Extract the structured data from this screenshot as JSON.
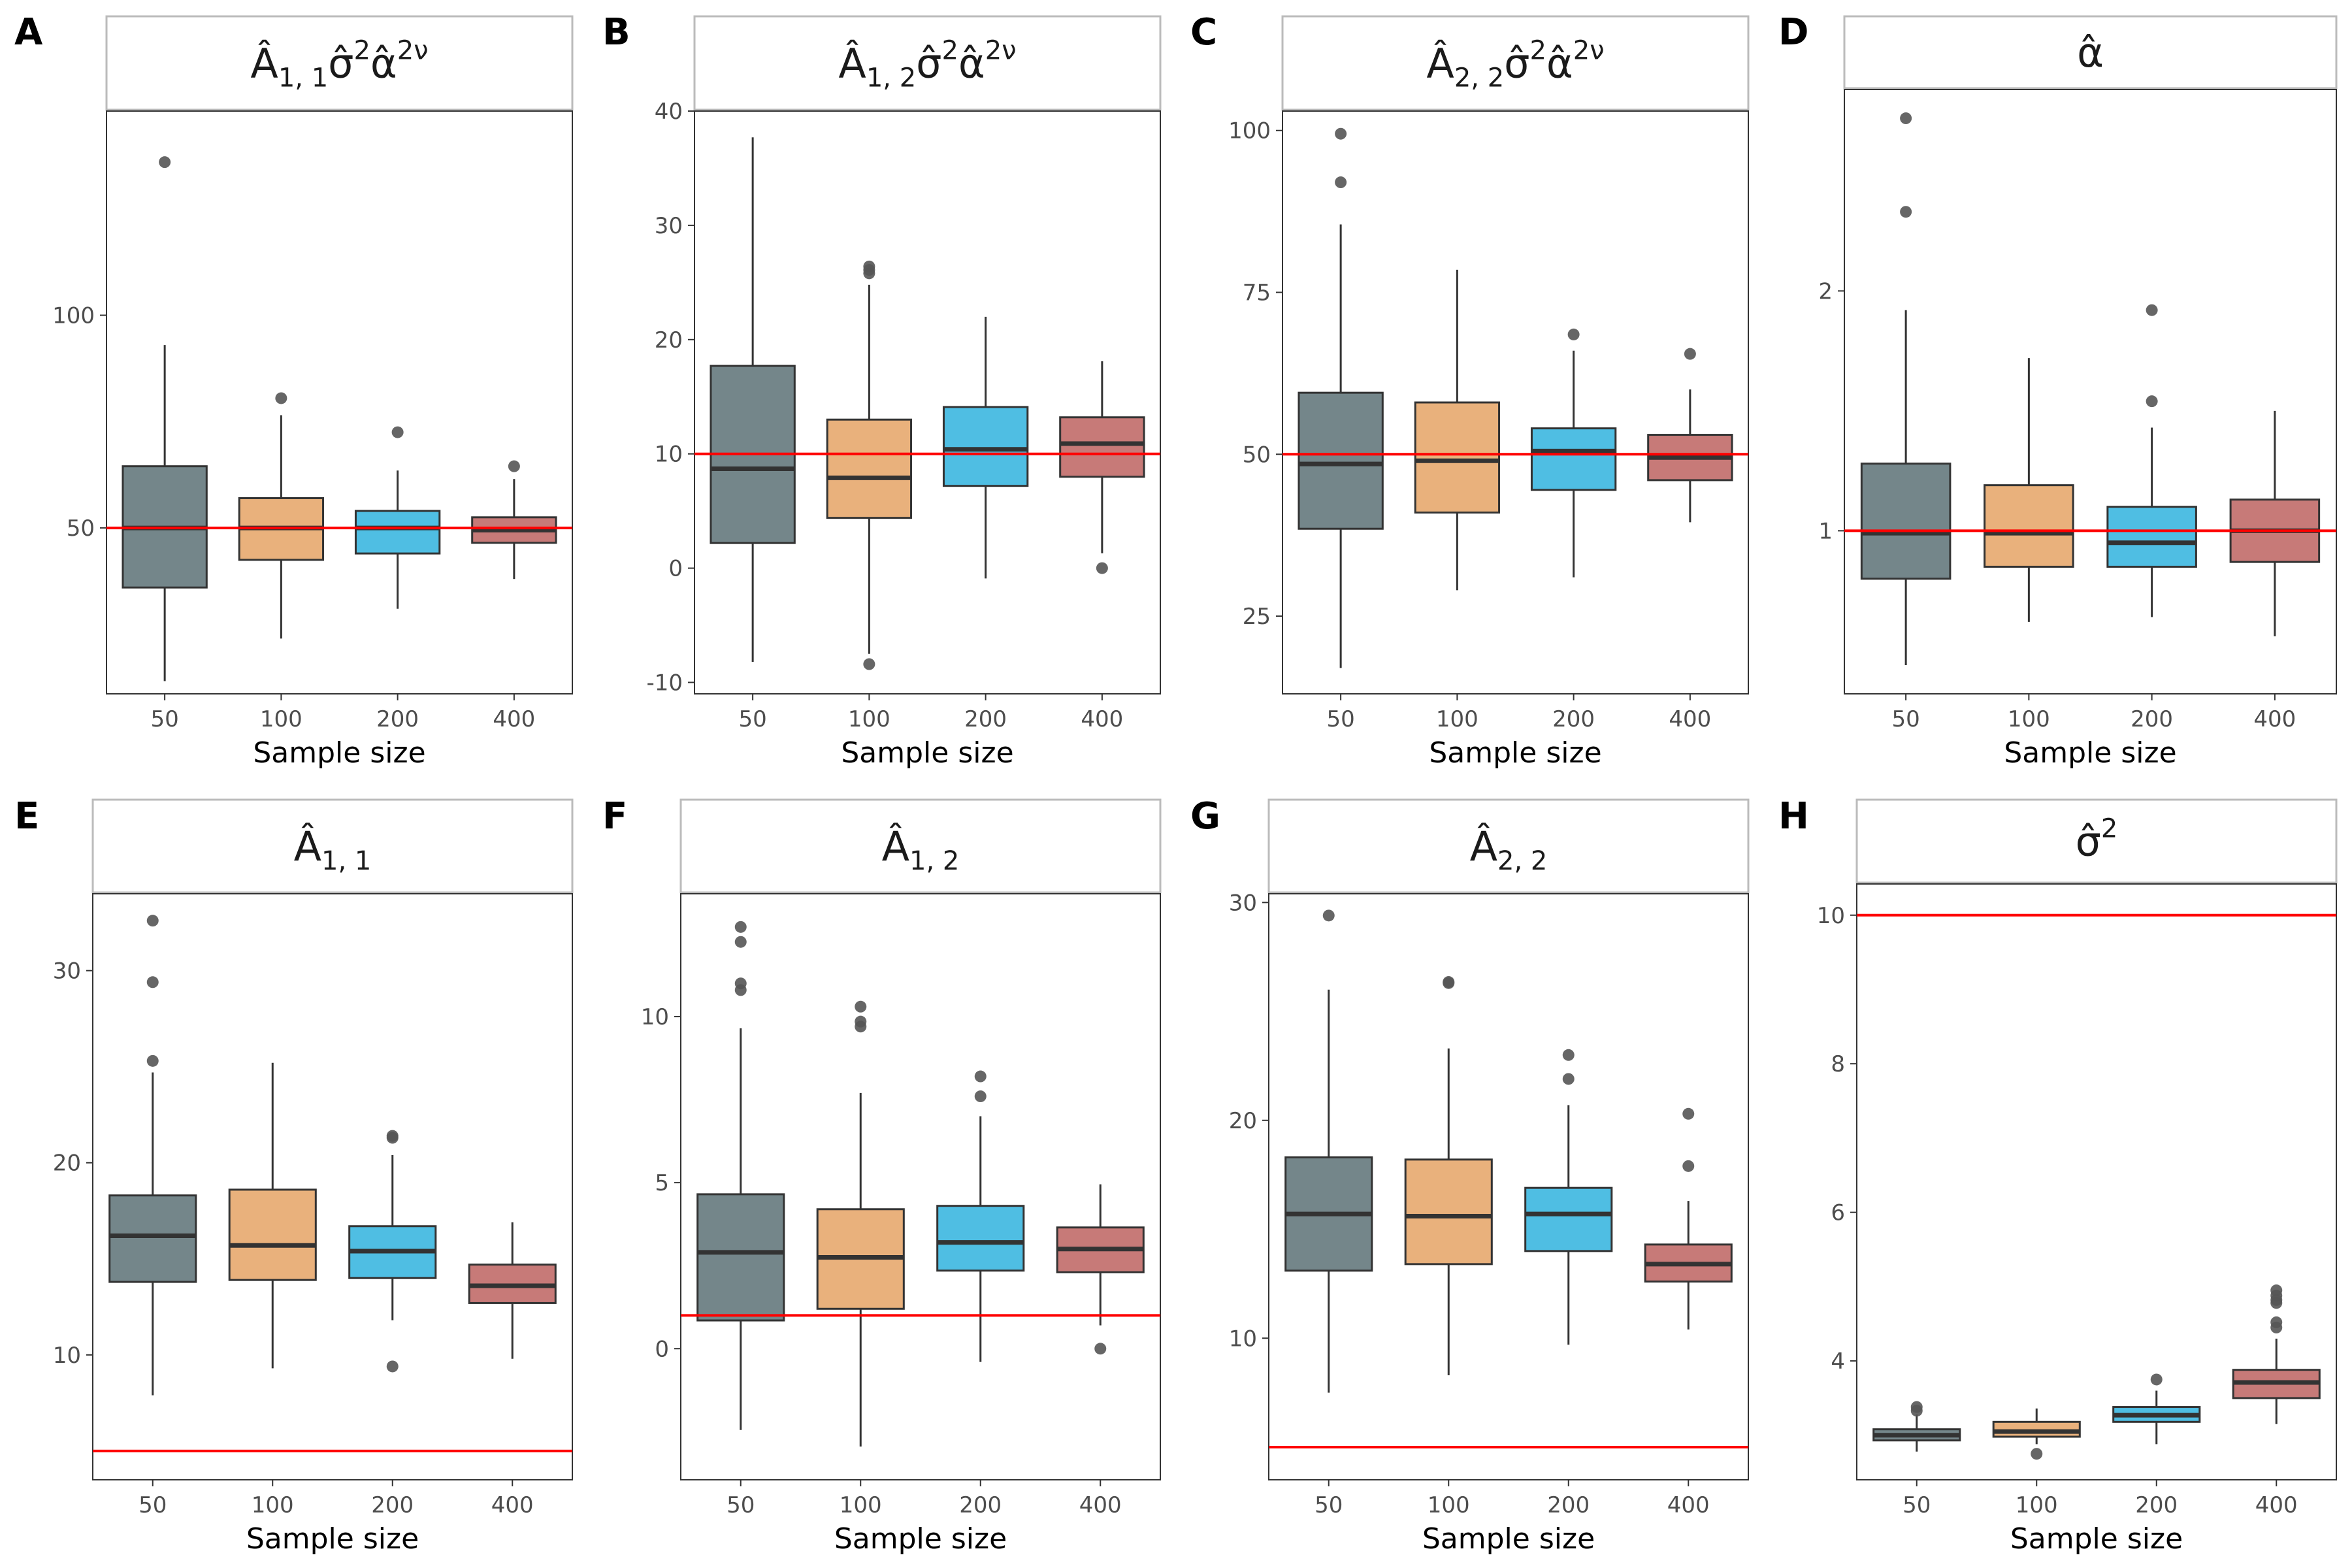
{
  "colors": {
    "groups": [
      "#74868A",
      "#E9B17C",
      "#4FBEE3",
      "#C77A78"
    ],
    "box_stroke": "#333333",
    "outlier": "#555555",
    "reference_line": "#FF0000",
    "strip_border": "#BBBBBB",
    "panel_border": "#333333",
    "tick_label": "#4D4D4D"
  },
  "chart_data": [
    {
      "type": "box",
      "label": "A",
      "title": {
        "base": "Â",
        "sub": "1, 1",
        "rest": "σ̂",
        "sup1": "2",
        "rest2": "α̂",
        "sup2": "2ν"
      },
      "xlabel": "Sample size",
      "categories": [
        "50",
        "100",
        "200",
        "400"
      ],
      "ylim": [
        11,
        148
      ],
      "yticks": [
        50,
        100
      ],
      "reference": 50,
      "boxes": [
        {
          "q1": 36,
          "median": 50,
          "q3": 64.5,
          "whisker_low": 14,
          "whisker_high": 93,
          "outliers": [
            136
          ]
        },
        {
          "q1": 42.5,
          "median": 50,
          "q3": 57,
          "whisker_low": 24,
          "whisker_high": 76.5,
          "outliers": [
            80.5
          ]
        },
        {
          "q1": 44,
          "median": 50,
          "q3": 54,
          "whisker_low": 31,
          "whisker_high": 63.5,
          "outliers": [
            72.5
          ]
        },
        {
          "q1": 46.5,
          "median": 49.5,
          "q3": 52.5,
          "whisker_low": 38,
          "whisker_high": 61.5,
          "outliers": [
            64.5
          ]
        }
      ]
    },
    {
      "type": "box",
      "label": "B",
      "title": {
        "base": "Â",
        "sub": "1, 2",
        "rest": "σ̂",
        "sup1": "2",
        "rest2": "α̂",
        "sup2": "2ν"
      },
      "xlabel": "Sample size",
      "categories": [
        "50",
        "100",
        "200",
        "400"
      ],
      "ylim": [
        -11,
        40
      ],
      "yticks": [
        -10,
        0,
        10,
        20,
        30,
        40
      ],
      "reference": 10,
      "boxes": [
        {
          "q1": 2.2,
          "median": 8.7,
          "q3": 17.7,
          "whisker_low": -8.2,
          "whisker_high": 37.7,
          "outliers": []
        },
        {
          "q1": 4.4,
          "median": 7.9,
          "q3": 13.0,
          "whisker_low": -7.5,
          "whisker_high": 24.8,
          "outliers": [
            25.8,
            26.1,
            26.4,
            -8.4
          ]
        },
        {
          "q1": 7.2,
          "median": 10.4,
          "q3": 14.1,
          "whisker_low": -0.9,
          "whisker_high": 22.0,
          "outliers": []
        },
        {
          "q1": 8.0,
          "median": 10.9,
          "q3": 13.2,
          "whisker_low": 1.3,
          "whisker_high": 18.1,
          "outliers": [
            0.0
          ]
        }
      ]
    },
    {
      "type": "box",
      "label": "C",
      "title": {
        "base": "Â",
        "sub": "2, 2",
        "rest": "σ̂",
        "sup1": "2",
        "rest2": "α̂",
        "sup2": "2ν"
      },
      "xlabel": "Sample size",
      "categories": [
        "50",
        "100",
        "200",
        "400"
      ],
      "ylim": [
        13,
        103
      ],
      "yticks": [
        25,
        50,
        75,
        100
      ],
      "reference": 50,
      "boxes": [
        {
          "q1": 38.5,
          "median": 48.5,
          "q3": 59.5,
          "whisker_low": 17,
          "whisker_high": 85.5,
          "outliers": [
            92,
            99.5
          ]
        },
        {
          "q1": 41,
          "median": 49,
          "q3": 58,
          "whisker_low": 29,
          "whisker_high": 78.5,
          "outliers": []
        },
        {
          "q1": 44.5,
          "median": 50.5,
          "q3": 54,
          "whisker_low": 31,
          "whisker_high": 66,
          "outliers": [
            68.5
          ]
        },
        {
          "q1": 46,
          "median": 49.5,
          "q3": 53,
          "whisker_low": 39.5,
          "whisker_high": 60,
          "outliers": [
            65.5
          ]
        }
      ]
    },
    {
      "type": "box",
      "label": "D",
      "title": {
        "base": "α̂"
      },
      "xlabel": "Sample size",
      "categories": [
        "50",
        "100",
        "200",
        "400"
      ],
      "ylim": [
        0.32,
        2.84
      ],
      "yticks": [
        1,
        2
      ],
      "reference": 1,
      "boxes": [
        {
          "q1": 0.8,
          "median": 0.99,
          "q3": 1.28,
          "whisker_low": 0.44,
          "whisker_high": 1.92,
          "outliers": [
            2.33,
            2.72
          ]
        },
        {
          "q1": 0.85,
          "median": 0.99,
          "q3": 1.19,
          "whisker_low": 0.62,
          "whisker_high": 1.72,
          "outliers": []
        },
        {
          "q1": 0.85,
          "median": 0.95,
          "q3": 1.1,
          "whisker_low": 0.64,
          "whisker_high": 1.43,
          "outliers": [
            1.92,
            1.54
          ]
        },
        {
          "q1": 0.87,
          "median": 1.0,
          "q3": 1.13,
          "whisker_low": 0.56,
          "whisker_high": 1.5,
          "outliers": []
        }
      ]
    },
    {
      "type": "box",
      "label": "E",
      "title": {
        "base": "Â",
        "sub": "1, 1"
      },
      "xlabel": "Sample size",
      "categories": [
        "50",
        "100",
        "200",
        "400"
      ],
      "ylim": [
        3.5,
        34
      ],
      "yticks": [
        10,
        20,
        30
      ],
      "reference": 5,
      "boxes": [
        {
          "q1": 13.8,
          "median": 16.2,
          "q3": 18.3,
          "whisker_low": 7.9,
          "whisker_high": 24.7,
          "outliers": [
            25.3,
            29.4,
            32.6
          ]
        },
        {
          "q1": 13.9,
          "median": 15.7,
          "q3": 18.6,
          "whisker_low": 9.3,
          "whisker_high": 25.2,
          "outliers": []
        },
        {
          "q1": 14.0,
          "median": 15.4,
          "q3": 16.7,
          "whisker_low": 11.8,
          "whisker_high": 20.4,
          "outliers": [
            21.3,
            21.4,
            9.4
          ]
        },
        {
          "q1": 12.7,
          "median": 13.6,
          "q3": 14.7,
          "whisker_low": 9.8,
          "whisker_high": 16.9,
          "outliers": []
        }
      ]
    },
    {
      "type": "box",
      "label": "F",
      "title": {
        "base": "Â",
        "sub": "1, 2"
      },
      "xlabel": "Sample size",
      "categories": [
        "50",
        "100",
        "200",
        "400"
      ],
      "ylim": [
        -3.95,
        13.7
      ],
      "yticks": [
        0,
        5,
        10
      ],
      "reference": 1,
      "boxes": [
        {
          "q1": 0.85,
          "median": 2.9,
          "q3": 4.65,
          "whisker_low": -2.45,
          "whisker_high": 9.65,
          "outliers": [
            10.8,
            11.0,
            12.25,
            12.7
          ]
        },
        {
          "q1": 1.2,
          "median": 2.75,
          "q3": 4.2,
          "whisker_low": -2.95,
          "whisker_high": 7.7,
          "outliers": [
            9.7,
            9.85,
            10.3
          ]
        },
        {
          "q1": 2.35,
          "median": 3.2,
          "q3": 4.3,
          "whisker_low": -0.4,
          "whisker_high": 7.0,
          "outliers": [
            7.6,
            8.2
          ]
        },
        {
          "q1": 2.3,
          "median": 3.0,
          "q3": 3.65,
          "whisker_low": 0.7,
          "whisker_high": 4.95,
          "outliers": [
            0.0
          ]
        }
      ]
    },
    {
      "type": "box",
      "label": "G",
      "title": {
        "base": "Â",
        "sub": "2, 2"
      },
      "xlabel": "Sample size",
      "categories": [
        "50",
        "100",
        "200",
        "400"
      ],
      "ylim": [
        3.5,
        30.4
      ],
      "yticks": [
        10,
        20,
        30
      ],
      "reference": 5,
      "boxes": [
        {
          "q1": 13.1,
          "median": 15.7,
          "q3": 18.3,
          "whisker_low": 7.5,
          "whisker_high": 26.0,
          "outliers": [
            29.4
          ]
        },
        {
          "q1": 13.4,
          "median": 15.6,
          "q3": 18.2,
          "whisker_low": 8.3,
          "whisker_high": 23.3,
          "outliers": [
            26.3,
            26.35
          ]
        },
        {
          "q1": 14.0,
          "median": 15.7,
          "q3": 16.9,
          "whisker_low": 9.7,
          "whisker_high": 20.7,
          "outliers": [
            21.9,
            23.0
          ]
        },
        {
          "q1": 12.6,
          "median": 13.4,
          "q3": 14.3,
          "whisker_low": 10.4,
          "whisker_high": 16.3,
          "outliers": [
            17.9,
            20.3
          ]
        }
      ]
    },
    {
      "type": "box",
      "label": "H",
      "title": {
        "base": "σ̂",
        "sup1": "2"
      },
      "xlabel": "Sample size",
      "categories": [
        "50",
        "100",
        "200",
        "400"
      ],
      "ylim": [
        2.4,
        10.42
      ],
      "yticks": [
        4,
        6,
        8,
        10
      ],
      "reference": 10,
      "boxes": [
        {
          "q1": 2.93,
          "median": 3.0,
          "q3": 3.08,
          "whisker_low": 2.78,
          "whisker_high": 3.28,
          "outliers": [
            3.33,
            3.38
          ]
        },
        {
          "q1": 2.98,
          "median": 3.05,
          "q3": 3.18,
          "whisker_low": 2.88,
          "whisker_high": 3.36,
          "outliers": [
            2.75
          ]
        },
        {
          "q1": 3.18,
          "median": 3.27,
          "q3": 3.38,
          "whisker_low": 2.88,
          "whisker_high": 3.6,
          "outliers": [
            3.75
          ]
        },
        {
          "q1": 3.5,
          "median": 3.71,
          "q3": 3.88,
          "whisker_low": 3.15,
          "whisker_high": 4.3,
          "outliers": [
            4.45,
            4.52,
            4.78,
            4.82,
            4.88,
            4.95
          ]
        }
      ]
    }
  ]
}
